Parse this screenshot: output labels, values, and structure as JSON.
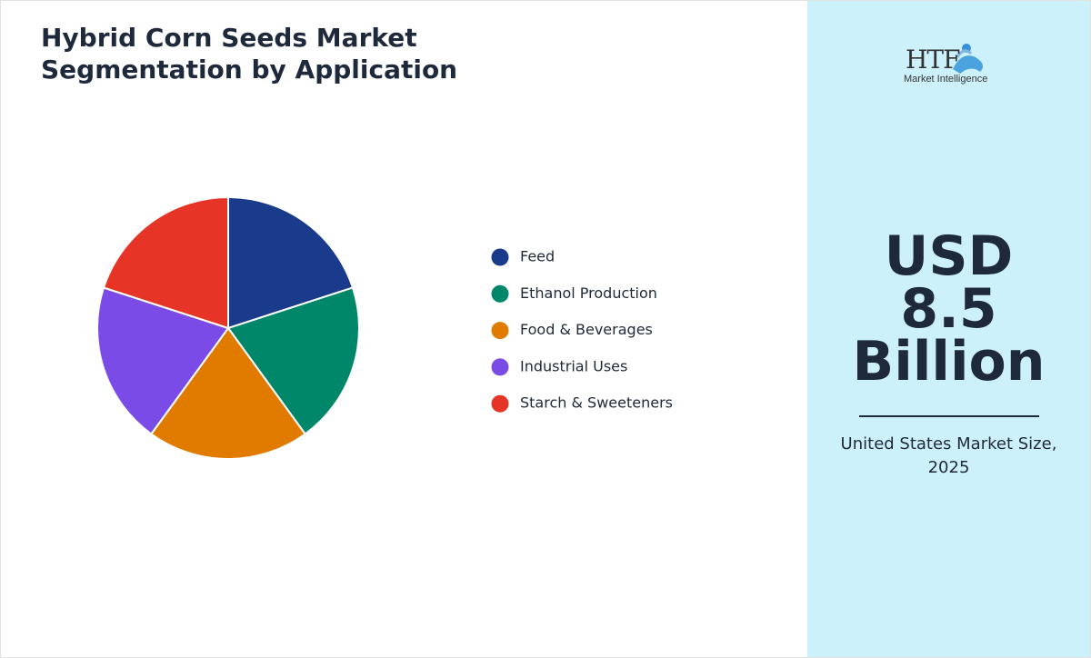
{
  "chart_data": {
    "type": "pie",
    "title": [
      "Hybrid Corn Seeds Market",
      "Segmentation by Application"
    ],
    "categories": [
      "Feed",
      "Ethanol Production",
      "Food & Beverages",
      "Industrial Uses",
      "Starch & Sweeteners"
    ],
    "values": [
      20,
      20,
      20,
      20,
      20
    ],
    "colors": [
      "#1a3a8c",
      "#00876a",
      "#e07b00",
      "#7b4be8",
      "#e63426"
    ]
  },
  "logo": {
    "mark": "HTF",
    "tagline": "Market Intelligence"
  },
  "highlight": {
    "value_lines": [
      "USD",
      "8.5",
      "Billion"
    ],
    "caption": "United States Market Size, 2025"
  }
}
